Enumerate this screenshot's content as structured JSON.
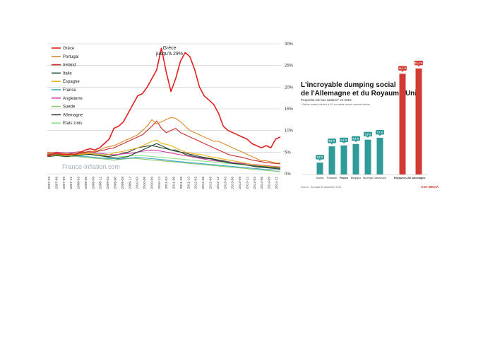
{
  "chart_data": [
    {
      "type": "line",
      "annotation": "Grèce\njusqu'à 29%",
      "watermark": "France-Inflation.com",
      "ylim": [
        0,
        30
      ],
      "yticks": [
        "0%",
        "5%",
        "10%",
        "15%",
        "20%",
        "25%",
        "30%"
      ],
      "xticks": [
        "2007-03",
        "2007-06",
        "2007-09",
        "2007-12",
        "2008-03",
        "2008-06",
        "2008-09",
        "2008-12",
        "2009-03",
        "2009-06",
        "2009-09",
        "2009-12",
        "2010-03",
        "2010-06",
        "2010-09",
        "2010-12",
        "2011-03",
        "2011-06",
        "2011-09",
        "2011-12",
        "2012-03",
        "2012-06",
        "2012-09",
        "2012-12",
        "2013-03",
        "2013-06",
        "2013-09",
        "2013-12",
        "2014-03",
        "2014-06",
        "2014-09",
        "2014-12"
      ],
      "series": [
        {
          "name": "Grèce",
          "color": "#e02020",
          "values": [
            4,
            4.5,
            4.8,
            4.5,
            4.4,
            4.6,
            4.5,
            5,
            5.5,
            5.8,
            5.5,
            6,
            7,
            8,
            10.5,
            11,
            12,
            14,
            16,
            18,
            18.5,
            20,
            22,
            24,
            29,
            23.5,
            19,
            22,
            26,
            28,
            27,
            24,
            20,
            18,
            17,
            16,
            14,
            11,
            10,
            9.5,
            9,
            8.5,
            8,
            7,
            6.5,
            6,
            6.5,
            6,
            8,
            8.5
          ]
        },
        {
          "name": "Portugal",
          "color": "#d98a2a",
          "values": [
            5,
            4.9,
            4.8,
            4.7,
            4.6,
            4.5,
            4.6,
            4.7,
            4.8,
            5,
            5.2,
            5.5,
            6,
            6.3,
            6.5,
            7,
            7.5,
            8,
            8.5,
            9,
            10,
            11,
            12.5,
            11.5,
            12,
            12.5,
            13,
            12.8,
            12,
            11,
            10,
            9.5,
            9,
            8.5,
            8,
            7.5,
            7.5,
            7,
            6.5,
            6,
            5.5,
            5,
            4.5,
            4,
            3.5,
            3,
            3,
            2.8,
            2.5,
            2.5
          ]
        },
        {
          "name": "Ireland",
          "color": "#c62a2a",
          "values": [
            4.5,
            4.6,
            4.7,
            4.5,
            4.4,
            4.5,
            4.6,
            4.8,
            5,
            5.2,
            5,
            5.3,
            5.5,
            5.8,
            6,
            6.5,
            7,
            7.5,
            8,
            8.5,
            9,
            10,
            11,
            12.2,
            10.5,
            9.5,
            10,
            10.5,
            9.5,
            9,
            8.5,
            8,
            7.5,
            7,
            6.5,
            6,
            5.5,
            5,
            4.5,
            4.2,
            4,
            3.8,
            3.5,
            3.2,
            3,
            2.8,
            2.6,
            2.5,
            2.4,
            2.3
          ]
        },
        {
          "name": "Italie",
          "color": "#1e4d2b",
          "values": [
            4,
            4.1,
            4.2,
            4.1,
            4,
            4.1,
            4.2,
            4.3,
            4.4,
            4.5,
            4.3,
            4.2,
            4,
            3.8,
            3.7,
            3.6,
            3.8,
            4,
            4.5,
            5,
            5.5,
            6,
            6.5,
            7,
            6.5,
            6,
            5.5,
            5.5,
            5,
            4.5,
            4.2,
            4,
            3.8,
            3.6,
            3.5,
            3.3,
            3,
            2.8,
            2.6,
            2.4,
            2.3,
            2.2,
            2,
            1.9,
            1.8,
            1.7,
            1.6,
            1.5,
            1.4,
            1.3
          ]
        },
        {
          "name": "Espagne",
          "color": "#e8b21a",
          "values": [
            4.2,
            4.3,
            4.4,
            4.3,
            4.2,
            4.3,
            4.4,
            4.5,
            4.6,
            4.7,
            4.5,
            4.4,
            4.3,
            4.5,
            4.8,
            5,
            5.2,
            5.5,
            5.7,
            6,
            6.5,
            7,
            7.5,
            7.8,
            7,
            6.8,
            6.5,
            6,
            5.5,
            5,
            4.8,
            4.6,
            4.5,
            4.3,
            4,
            3.8,
            3.6,
            3.4,
            3.2,
            3,
            2.8,
            2.6,
            2.4,
            2.2,
            2,
            1.9,
            1.8,
            1.7,
            1.6,
            1.5
          ]
        },
        {
          "name": "France",
          "color": "#3fa8c8",
          "values": [
            4,
            4.1,
            4.2,
            4.1,
            4,
            4.1,
            4.2,
            4.1,
            4,
            3.9,
            3.8,
            3.7,
            3.6,
            3.5,
            3.5,
            3.4,
            3.5,
            3.6,
            3.7,
            3.8,
            3.7,
            3.6,
            3.5,
            3.4,
            3.3,
            3.2,
            3,
            2.9,
            2.8,
            2.7,
            2.6,
            2.5,
            2.4,
            2.3,
            2.2,
            2.1,
            2,
            1.9,
            1.8,
            1.7,
            1.6,
            1.5,
            1.4,
            1.3,
            1.2,
            1.1,
            1,
            1,
            0.9,
            0.9
          ]
        },
        {
          "name": "Angleterre",
          "color": "#d23fa6",
          "values": [
            4.8,
            4.9,
            5,
            4.9,
            4.8,
            4.9,
            5,
            5.1,
            5,
            4.9,
            4.8,
            4.7,
            4.6,
            4.5,
            4.4,
            4.5,
            4.6,
            4.7,
            4.8,
            5,
            5.2,
            5.4,
            5.5,
            5.4,
            5.2,
            5,
            4.8,
            4.6,
            4.4,
            4.2,
            4,
            3.8,
            3.6,
            3.4,
            3.2,
            3,
            2.9,
            2.8,
            2.7,
            2.6,
            2.5,
            2.4,
            2.3,
            2.2,
            2.1,
            2,
            1.9,
            1.8,
            1.7,
            1.6
          ]
        },
        {
          "name": "Suede",
          "color": "#88c66a",
          "values": [
            4,
            4.1,
            4.2,
            4.3,
            4.2,
            4.1,
            4,
            3.9,
            3.8,
            3.7,
            3.6,
            3.5,
            3.4,
            3.3,
            3.2,
            3.3,
            3.4,
            3.5,
            3.6,
            3.5,
            3.4,
            3.3,
            3.2,
            3.1,
            3,
            2.9,
            2.8,
            2.7,
            2.6,
            2.5,
            2.4,
            2.3,
            2.2,
            2.1,
            2,
            1.9,
            1.8,
            1.7,
            1.6,
            1.5,
            1.4,
            1.3,
            1.2,
            1.1,
            1,
            0.9,
            0.8,
            0.7,
            0.6,
            0.5
          ]
        },
        {
          "name": "Allemagne",
          "color": "#3c3c3c",
          "values": [
            4.3,
            4.4,
            4.5,
            4.4,
            4.3,
            4.4,
            4.5,
            4.6,
            4.7,
            4.5,
            4.3,
            4.2,
            4.1,
            4,
            4.2,
            4.5,
            4.8,
            5,
            5.5,
            6,
            6.2,
            6.4,
            6.5,
            6.3,
            6,
            5.8,
            5.5,
            5.2,
            5,
            4.8,
            4.5,
            4.3,
            4,
            3.8,
            3.6,
            3.4,
            3.2,
            3,
            2.8,
            2.6,
            2.4,
            2.2,
            2,
            1.8,
            1.6,
            1.5,
            1.4,
            1.3,
            1.2,
            1.1
          ]
        },
        {
          "name": "Etats Unis",
          "color": "#8fe08a",
          "values": [
            4.6,
            4.7,
            4.8,
            4.7,
            4.6,
            4.7,
            4.8,
            4.9,
            4.8,
            4.7,
            4.6,
            4.5,
            4.4,
            4.3,
            4.2,
            4.1,
            4,
            4.1,
            4.2,
            4.3,
            4.2,
            4.1,
            4,
            3.9,
            3.8,
            3.7,
            3.6,
            3.5,
            3.4,
            3.3,
            3.2,
            3.1,
            3,
            2.9,
            2.8,
            2.7,
            2.6,
            2.5,
            2.4,
            2.3,
            2.2,
            2.1,
            2,
            1.9,
            1.8,
            1.7,
            1.6,
            1.5,
            1.4,
            1.3
          ]
        }
      ]
    },
    {
      "type": "bar",
      "title_line1": "L'incroyable dumping social",
      "title_line2": "de l'Allemagne et du Royaume-Uni",
      "subtitle": "Proportion de bas salaires* en 2010",
      "footnote": "* Salaire horaire inférieur à 2/3 du salaire horaire national médian",
      "categories": [
        "Suède",
        "Finlande",
        "France",
        "Belgique",
        "Norvège",
        "Danemark",
        "Royaume-Uni",
        "Allemagne"
      ],
      "values": [
        2.5,
        5.9,
        6.1,
        6.4,
        7.3,
        7.7,
        21.1,
        22.2
      ],
      "labels": [
        "2,5 %",
        "5,9 %",
        "6,1 %",
        "6,4 %",
        "7,3 %",
        "7,7 %",
        "21,1 %",
        "22,2 %"
      ],
      "colors": [
        "#2f9a98",
        "#2f9a98",
        "#2f9a98",
        "#2f9a98",
        "#2f9a98",
        "#2f9a98",
        "#d23b33",
        "#d23b33"
      ],
      "ylim": [
        0,
        25
      ],
      "source": "Source : Eurostat 30 décembre 2012",
      "logo": "ASK MEDIA"
    }
  ]
}
